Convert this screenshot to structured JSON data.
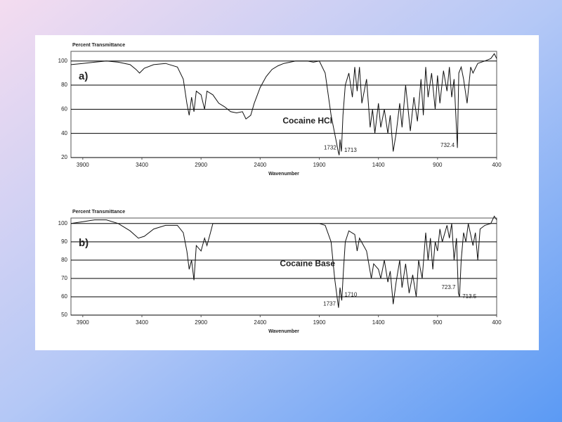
{
  "chart_data": [
    {
      "type": "line",
      "panel_label": "a)",
      "ylabel": "Percent Transmittance",
      "xlabel": "Wavenumber",
      "color": "#111111",
      "grid": true,
      "xlim": [
        4000,
        400
      ],
      "ylim": [
        20,
        108
      ],
      "xticks": [
        3900,
        3400,
        2900,
        2400,
        1900,
        1400,
        900,
        400
      ],
      "yticks": [
        20,
        40,
        60,
        80,
        100
      ],
      "x": [
        4000,
        3900,
        3800,
        3700,
        3600,
        3500,
        3450,
        3420,
        3380,
        3300,
        3200,
        3100,
        3050,
        3020,
        3000,
        2980,
        2960,
        2940,
        2900,
        2870,
        2850,
        2800,
        2750,
        2700,
        2650,
        2600,
        2550,
        2520,
        2480,
        2450,
        2400,
        2350,
        2300,
        2250,
        2200,
        2100,
        2000,
        1950,
        1900,
        1850,
        1800,
        1760,
        1740,
        1732,
        1725,
        1713,
        1700,
        1680,
        1650,
        1620,
        1600,
        1580,
        1560,
        1540,
        1500,
        1470,
        1450,
        1430,
        1400,
        1380,
        1350,
        1320,
        1300,
        1275,
        1250,
        1220,
        1200,
        1170,
        1130,
        1100,
        1070,
        1040,
        1020,
        1000,
        980,
        950,
        920,
        900,
        880,
        850,
        820,
        800,
        780,
        760,
        732,
        720,
        700,
        680,
        650,
        620,
        600,
        560,
        500,
        450,
        420,
        400
      ],
      "values": [
        97,
        98,
        99,
        100,
        99,
        97,
        93,
        90,
        94,
        97,
        98,
        95,
        85,
        65,
        55,
        70,
        58,
        75,
        72,
        60,
        75,
        72,
        65,
        62,
        58,
        57,
        58,
        52,
        55,
        65,
        78,
        87,
        93,
        96,
        98,
        100,
        100,
        99,
        100,
        90,
        55,
        35,
        25,
        22,
        35,
        25,
        55,
        80,
        90,
        70,
        95,
        75,
        95,
        65,
        85,
        45,
        60,
        40,
        65,
        45,
        60,
        40,
        55,
        25,
        40,
        65,
        45,
        80,
        42,
        70,
        50,
        85,
        55,
        95,
        70,
        90,
        60,
        88,
        65,
        92,
        75,
        95,
        70,
        85,
        28,
        90,
        95,
        85,
        65,
        95,
        90,
        98,
        100,
        102,
        106,
        102
      ],
      "annotations": [
        {
          "text": "Cocaine HCl",
          "x": 2000,
          "y": 50
        },
        {
          "text": "1732",
          "x": 1732,
          "y": 28
        },
        {
          "text": "1713",
          "x": 1713,
          "y": 26
        },
        {
          "text": "732.4",
          "x": 732.4,
          "y": 30
        }
      ]
    },
    {
      "type": "line",
      "panel_label": "b)",
      "ylabel": "Percent Transmittance",
      "xlabel": "Wavenumber",
      "color": "#111111",
      "grid": true,
      "xlim": [
        4000,
        400
      ],
      "ylim": [
        50,
        103
      ],
      "xticks": [
        3900,
        3400,
        2900,
        2400,
        1900,
        1400,
        900,
        400
      ],
      "yticks": [
        50,
        60,
        70,
        80,
        90,
        100
      ],
      "x": [
        4000,
        3900,
        3800,
        3700,
        3600,
        3500,
        3430,
        3380,
        3300,
        3200,
        3100,
        3050,
        3020,
        3000,
        2980,
        2960,
        2940,
        2900,
        2870,
        2850,
        2820,
        2800,
        2700,
        2500,
        2300,
        2100,
        2000,
        1900,
        1850,
        1800,
        1770,
        1750,
        1737,
        1725,
        1710,
        1695,
        1680,
        1650,
        1600,
        1580,
        1560,
        1500,
        1460,
        1440,
        1400,
        1380,
        1350,
        1320,
        1300,
        1275,
        1250,
        1220,
        1200,
        1170,
        1140,
        1110,
        1080,
        1060,
        1030,
        1000,
        980,
        960,
        940,
        920,
        900,
        880,
        860,
        820,
        800,
        780,
        760,
        740,
        724,
        714,
        700,
        680,
        660,
        640,
        600,
        580,
        560,
        540,
        500,
        450,
        420,
        400
      ],
      "values": [
        100,
        101,
        102,
        102,
        100,
        96,
        92,
        93,
        97,
        99,
        99,
        95,
        85,
        75,
        80,
        69,
        88,
        85,
        92,
        88,
        95,
        100,
        100,
        100,
        100,
        100,
        100,
        100,
        99,
        90,
        70,
        60,
        54,
        65,
        58,
        75,
        90,
        96,
        94,
        85,
        92,
        85,
        70,
        78,
        75,
        70,
        80,
        68,
        74,
        56,
        68,
        80,
        65,
        78,
        62,
        72,
        60,
        80,
        70,
        95,
        80,
        92,
        75,
        90,
        85,
        97,
        90,
        99,
        92,
        100,
        80,
        92,
        62,
        60,
        80,
        95,
        90,
        100,
        88,
        95,
        80,
        97,
        99,
        100,
        104,
        102
      ],
      "annotations": [
        {
          "text": "Cocaine Base",
          "x": 2000,
          "y": 78
        },
        {
          "text": "1737",
          "x": 1737,
          "y": 56
        },
        {
          "text": "1710",
          "x": 1710,
          "y": 61
        },
        {
          "text": "723.7",
          "x": 723.7,
          "y": 65
        },
        {
          "text": "713.5",
          "x": 713.5,
          "y": 60
        }
      ]
    }
  ]
}
